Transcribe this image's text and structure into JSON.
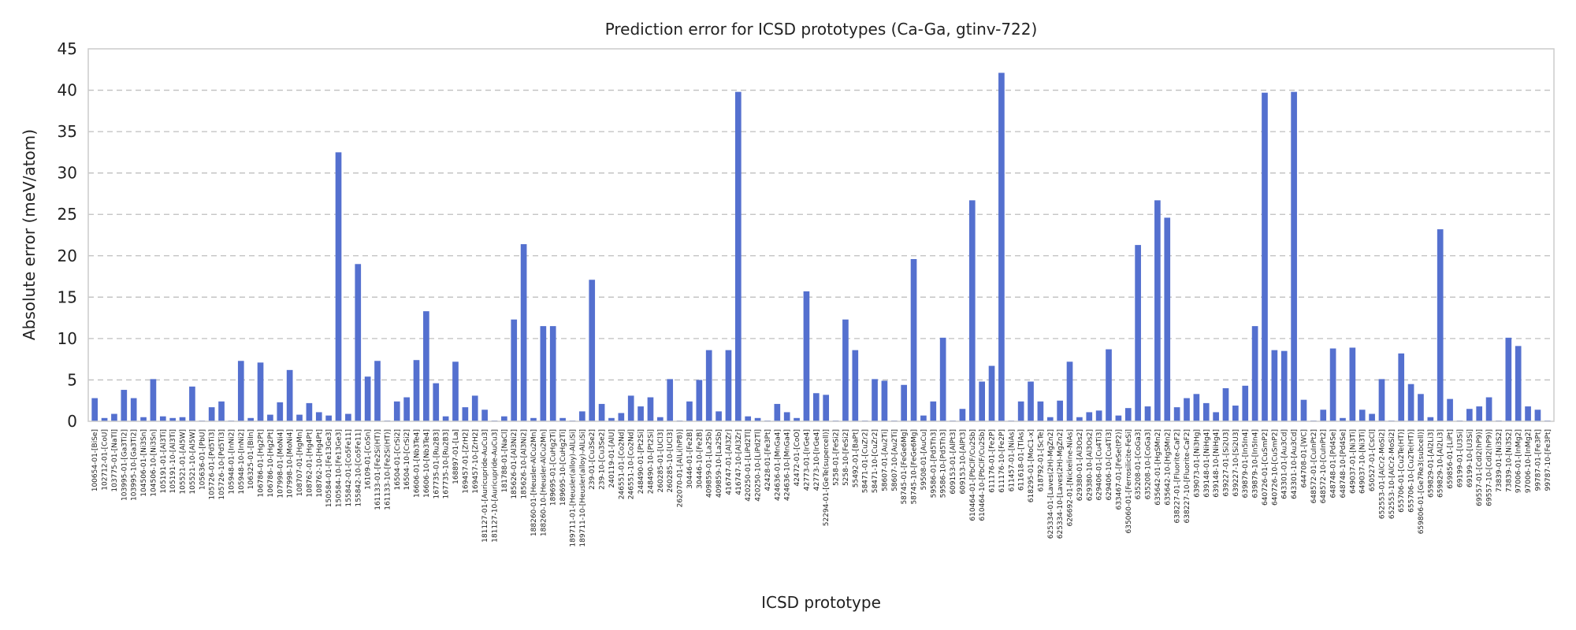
{
  "chart_data": {
    "type": "bar",
    "title": "Prediction error for ICSD prototypes (Ca-Ga, gtinv-722)",
    "xlabel": "ICSD prototype",
    "ylabel": "Absolute error (meV/atom)",
    "ylim": [
      0,
      45
    ],
    "yticks": [
      0,
      5,
      10,
      15,
      20,
      25,
      30,
      35,
      40,
      45
    ],
    "grid": "horizontal dashed",
    "bar_color": "#5470cf",
    "categories": [
      "100654-01-[BiSe]",
      "102712-01-[CoU]",
      "103775-01-[NaTl]",
      "103995-01-[Ga3Ti2]",
      "103995-10-[Ga3Ti2]",
      "104506-01-[Ni3Sn]",
      "104506-10-[Ni3Sn]",
      "105191-01-[Al3Ti]",
      "105191-10-[Al3Ti]",
      "105521-01-[Al5W]",
      "105521-10-[Al5W]",
      "105636-01-[PbU]",
      "105726-01-[Pd5Ti3]",
      "105726-10-[Pd5Ti3]",
      "105948-01-[InNi2]",
      "105948-10-[InNi2]",
      "106325-01-[BiIn]",
      "106786-01-[Hg2Pt]",
      "106786-10-[Hg2Pt]",
      "107998-01-[MoNi4]",
      "107998-10-[MoNi4]",
      "108707-01-[HgMn]",
      "108762-01-[Hg4Pt]",
      "108762-10-[Hg4Pt]",
      "150584-01-[Fe13Ge3]",
      "150584-10-[Fe13Ge3]",
      "155842-01-[Co5Fe11]",
      "155842-10-[Co5Fe11]",
      "16109-01-[CoSn]",
      "161133-01-[Fe2Si(HT)]",
      "161133-10-[Fe2Si(HT)]",
      "16504-01-[CrSi2]",
      "16504-10-[CrSi2]",
      "16606-01-[Nb3Te4]",
      "16606-10-[Nb3Te4]",
      "167735-01-[Ru2B3]",
      "167735-10-[Ru2B3]",
      "168897-01-[La]",
      "169457-01-[ZrH2]",
      "169457-10-[ZrH2]",
      "181127-01-[Auricupride-AuCu3]",
      "181127-10-[Auricupride-AuCu3]",
      "181788-01-[NaCl]",
      "185626-01-[Al3Ni2]",
      "185626-10-[Al3Ni2]",
      "188260-01-[Heusler-AlCu2Mn]",
      "188260-10-[Heusler-AlCu2Mn]",
      "189695-01-[CuHg2Ti]",
      "189695-10-[CuHg2Ti]",
      "189711-01-[Heusler(alloy)-AlLiSi]",
      "189711-10-[Heusler(alloy)-AlLiSi]",
      "239-01-[Cu3Se2]",
      "239-10-[Cu3Se2]",
      "240119-01-[AlU]",
      "246551-01-[Co2Nd]",
      "246551-10-[Co2Nd]",
      "248490-01-[Pt2Si]",
      "248490-10-[Pt2Si]",
      "260285-01-[UCl3]",
      "260285-10-[UCl3]",
      "262070-01-[AlLi(hP8)]",
      "30446-01-[Fe2B]",
      "30446-10-[Fe2B]",
      "409859-01-[La2Sb]",
      "409859-10-[La2Sb]",
      "416747-01-[Al3Zr]",
      "416747-10-[Al3Zr]",
      "420250-01-[LiPd2Tl]",
      "420250-10-[LiPd2Tl]",
      "42428-01-[Fe3Pt]",
      "424636-01-[MnGa4]",
      "424636-10-[MnGa4]",
      "42472-01-[CoO]",
      "42773-01-[IrGe4]",
      "42773-10-[IrGe4]",
      "52294-01-[GeTe(supercell)]",
      "5258-01-[FeSi2]",
      "5258-10-[FeSi2]",
      "55492-01-[BaPt]",
      "58471-01-[CuZr2]",
      "58471-10-[CuZr2]",
      "58607-01-[Au2Ti]",
      "58607-10-[Au2Ti]",
      "58745-01-[FeGe6Mg]",
      "58745-10-[FeGe6Mg]",
      "59508-01-[AuCu]",
      "59586-01-[Pd5Th3]",
      "59586-10-[Pd5Th3]",
      "609153-01-[AlPt3]",
      "609153-10-[AlPt3]",
      "610464-01-[PbClF/Cu2Sb]",
      "610464-10-[PbClF/Cu2Sb]",
      "611176-01-[Fe2P]",
      "611176-10-[Fe2P]",
      "611457-01-[NiAs]",
      "611618-01-[TlAs]",
      "618295-01-[MoC1-x]",
      "618792-01-[ScTe]",
      "625334-01-[Laves(2H)-MgZn2]",
      "625334-10-[Laves(2H)-MgZn2]",
      "626692-01-[Nickeline-NiAs]",
      "629380-01-[Al3Os2]",
      "629380-10-[Al3Os2]",
      "629406-01-[Cu4Ti3]",
      "629406-10-[Cu4Ti3]",
      "633467-01-[FeSe(tP2)]",
      "635060-01-[Ferrosilicite-FeSi]",
      "635208-01-[CoGa3]",
      "635208-10-[CoGa3]",
      "635642-01-[HgSMn2]",
      "635642-10-[HgSMn2]",
      "638227-01-[Fluorite-CaF2]",
      "638227-10-[Fluorite-CaF2]",
      "639073-01-[Ni3Hg]",
      "639148-01-[NiHg4]",
      "639148-10-[NiHg4]",
      "639227-01-[Si2U3]",
      "639227-10-[Si2U3]",
      "639879-01-[In5In4]",
      "639879-10-[In5In4]",
      "640726-01-[CuSmP2]",
      "640726-10-[CuSmP2]",
      "643301-01-[Au3Cd]",
      "643301-10-[Au3Cd]",
      "644708-01-[WC]",
      "648572-01-[CuInPt2]",
      "648572-10-[CuInPt2]",
      "648748-01-[Pd4Se]",
      "648748-10-[Pd4Se]",
      "649037-01-[Ni3Ti]",
      "649037-10-[Ni3Ti]",
      "650527-01-[CsCl]",
      "652553-01-[AlCr2-MoSi2]",
      "652553-10-[AlCr2-MoSi2]",
      "655706-01-[Cu2Te(HT)]",
      "655706-10-[Cu2Te(HT)]",
      "659806-01-[Ge7Re3(subcell)]",
      "659829-01-[Al2Li3]",
      "659829-10-[Al2Li3]",
      "659856-01-[LiPt]",
      "69199-01-[U3Si]",
      "69199-10-[U3Si]",
      "69557-01-[CdI2(hP9)]",
      "69557-10-[CdI2(hP9)]",
      "73839-01-[Ni3S2]",
      "73839-10-[Ni3S2]",
      "97006-01-[InMg2]",
      "97006-10-[InMg2]",
      "99787-01-[Fe3Pt]",
      "99787-10-[Fe3Pt]"
    ],
    "values": [
      2.8,
      0.4,
      0.9,
      3.8,
      2.8,
      0.5,
      5.1,
      0.6,
      0.4,
      0.5,
      4.2,
      0.1,
      1.7,
      2.4,
      0.1,
      7.3,
      0.4,
      7.1,
      0.8,
      2.3,
      6.2,
      0.8,
      2.2,
      1.1,
      0.7,
      32.5,
      0.9,
      19.0,
      5.4,
      7.3,
      0.1,
      2.4,
      2.9,
      7.4,
      13.3,
      4.6,
      0.6,
      7.2,
      1.7,
      3.1,
      1.4,
      0.1,
      0.6,
      12.3,
      21.4,
      0.4,
      11.5,
      11.5,
      0.4,
      0.1,
      1.2,
      17.1,
      2.1,
      0.4,
      1.0,
      3.1,
      1.8,
      2.9,
      0.5,
      5.1,
      0.1,
      2.4,
      5.0,
      8.6,
      1.2,
      8.6,
      39.8,
      0.6,
      0.4,
      0.1,
      2.1,
      1.1,
      0.4,
      15.7,
      3.4,
      3.2,
      0.1,
      12.3,
      8.6,
      0.1,
      5.1,
      4.9,
      0.1,
      4.4,
      19.6,
      0.7,
      2.4,
      10.1,
      0.1,
      1.5,
      26.7,
      4.8,
      6.7,
      42.1,
      0.1,
      2.4,
      4.8,
      2.4,
      0.5,
      2.5,
      7.2,
      0.5,
      1.1,
      1.3,
      8.7,
      0.7,
      1.6,
      21.3,
      1.8,
      26.7,
      24.6,
      1.7,
      2.8,
      3.3,
      2.2,
      1.1,
      4.0,
      1.9,
      4.3,
      11.5,
      39.7,
      8.6,
      8.5,
      39.8,
      2.6,
      0.1,
      1.4,
      8.8,
      0.4,
      8.9,
      1.4,
      0.9,
      5.1,
      0.1,
      8.2,
      4.5,
      3.3,
      0.5,
      23.2,
      2.7,
      0.1,
      1.5,
      1.8,
      2.9,
      0.1,
      10.1,
      9.1,
      1.8,
      1.4,
      0.1
    ]
  }
}
